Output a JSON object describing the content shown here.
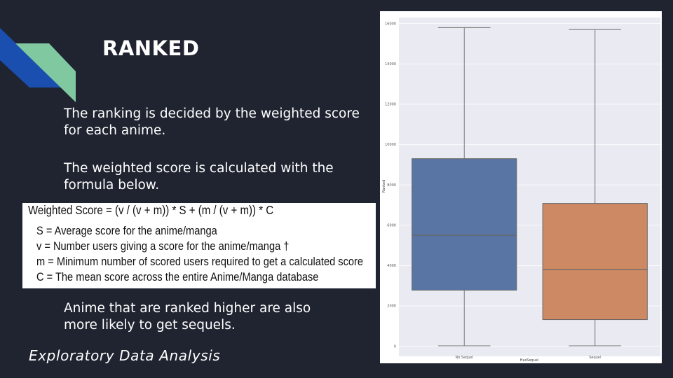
{
  "slide": {
    "title": "RANKED",
    "paragraph_1": "The ranking is decided by the weighted score for each anime.",
    "paragraph_2": "The weighted score is calculated with the formula below.",
    "paragraph_3": "Anime that are ranked higher are also more likely to get sequels.",
    "footer": "Exploratory Data Analysis",
    "colors": {
      "background": "#1f2430",
      "accent_blue": "#1a4fb0",
      "accent_green": "#7fc8a0"
    }
  },
  "formula": {
    "main": "Weighted Score = (v / (v + m)) * S + (m / (v + m)) * C",
    "defs": [
      "S = Average score for the anime/manga",
      "v = Number users giving a score for the anime/manga †",
      "m = Minimum number of scored users required to get a calculated score",
      "C = The mean score across the entire Anime/Manga database"
    ]
  },
  "chart_data": {
    "type": "boxplot",
    "xlabel": "HasSequel",
    "ylabel": "Ranked",
    "ylim": [
      -500,
      16300
    ],
    "yticks": [
      0,
      2000,
      4000,
      6000,
      8000,
      10000,
      12000,
      14000,
      16000
    ],
    "grid": true,
    "categories": [
      "No Sequel",
      "Sequel"
    ],
    "series": [
      {
        "category": "No Sequel",
        "min": 20,
        "q1": 2780,
        "median": 5500,
        "q3": 9300,
        "max": 15800,
        "color": "#5875a4"
      },
      {
        "category": "Sequel",
        "min": 20,
        "q1": 1320,
        "median": 3800,
        "q3": 7080,
        "max": 15700,
        "color": "#cc8963"
      }
    ]
  }
}
